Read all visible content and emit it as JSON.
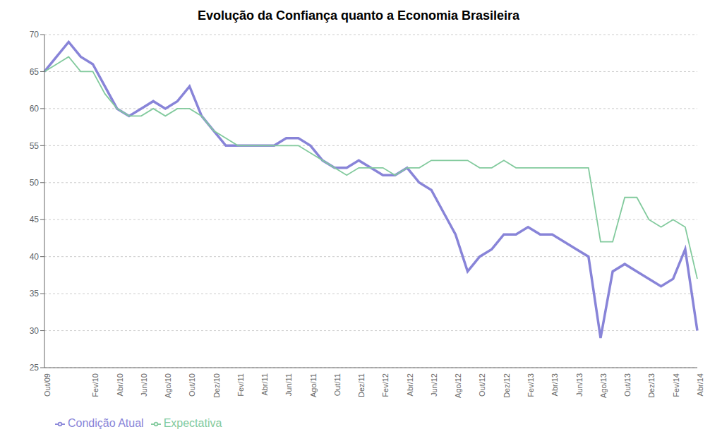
{
  "chart_data": {
    "type": "line",
    "title": "Evolução da Confiança quanto a Economia Brasileira",
    "categories": [
      "Out/09",
      null,
      null,
      null,
      "Fev/10",
      null,
      "Abr/10",
      null,
      "Jun/10",
      null,
      "Ago/10",
      null,
      "Out/10",
      null,
      "Dez/10",
      null,
      "Fev/11",
      null,
      "Abr/11",
      null,
      "Jun/11",
      null,
      "Ago/11",
      null,
      "Out/11",
      null,
      "Dez/11",
      null,
      "Fev/12",
      null,
      "Abr/12",
      null,
      "Jun/12",
      null,
      "Ago/12",
      null,
      "Out/12",
      null,
      "Dez/12",
      null,
      "Fev/13",
      null,
      "Abr/13",
      null,
      "Jun/13",
      null,
      "Ago/13",
      null,
      "Out/13",
      null,
      "Dez/13",
      null,
      "Fev/14",
      null,
      "Abr/14"
    ],
    "series": [
      {
        "name": "Condição Atual",
        "color": "#8884d8",
        "values": [
          65,
          67,
          69,
          67,
          66,
          63,
          60,
          59,
          60,
          61,
          60,
          61,
          63,
          59,
          57,
          55,
          55,
          55,
          55,
          55,
          56,
          56,
          55,
          53,
          52,
          52,
          53,
          52,
          51,
          51,
          52,
          50,
          49,
          46,
          43,
          38,
          40,
          41,
          43,
          43,
          44,
          43,
          43,
          42,
          41,
          40,
          29,
          38,
          39,
          38,
          37,
          36,
          37,
          41,
          30
        ]
      },
      {
        "name": "Expectativa",
        "color": "#82ca9d",
        "values": [
          65,
          66,
          67,
          65,
          65,
          62,
          60,
          59,
          59,
          60,
          59,
          60,
          60,
          59,
          57,
          56,
          55,
          55,
          55,
          55,
          55,
          55,
          54,
          53,
          52,
          51,
          52,
          52,
          52,
          51,
          52,
          52,
          53,
          53,
          53,
          53,
          52,
          52,
          53,
          52,
          52,
          52,
          52,
          52,
          52,
          52,
          42,
          42,
          48,
          48,
          45,
          44,
          45,
          44,
          37
        ]
      }
    ],
    "ylim": [
      25,
      70
    ],
    "yticks": [
      25,
      30,
      35,
      40,
      45,
      50,
      55,
      60,
      65,
      70
    ],
    "grid": true,
    "legend": "lower left"
  }
}
